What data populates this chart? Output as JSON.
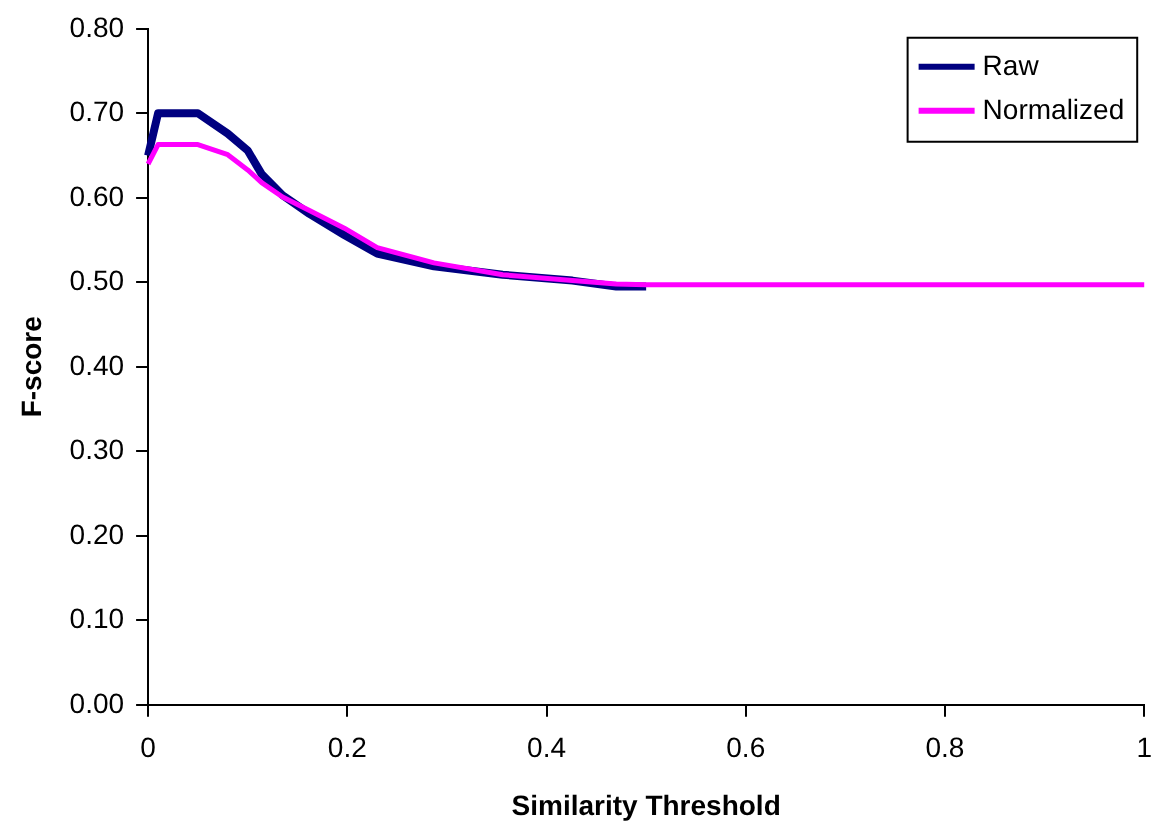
{
  "chart_data": {
    "type": "line",
    "xlabel": "Similarity Threshold",
    "ylabel": "F-score",
    "xlim": [
      0,
      1
    ],
    "xticks": [
      0,
      0.2,
      0.4,
      0.6,
      0.8,
      1
    ],
    "ylim": [
      0,
      0.8
    ],
    "yticks": [
      {
        "value": 0,
        "label": "0.00"
      },
      {
        "value": 0.1,
        "label": "0.10"
      },
      {
        "value": 0.2,
        "label": "0.20"
      },
      {
        "value": 0.3,
        "label": "0.30"
      },
      {
        "value": 0.4,
        "label": "0.40"
      },
      {
        "value": 0.5,
        "label": "0.50"
      },
      {
        "value": 0.6,
        "label": "0.60"
      },
      {
        "value": 0.7,
        "label": "0.70"
      },
      {
        "value": 0.8,
        "label": "0.80"
      }
    ],
    "grid": false,
    "legend": "top right",
    "marker": "none",
    "line_style": "solid",
    "series": [
      {
        "name": "Raw",
        "color": "#000080",
        "x": [
          0,
          0.01,
          0.05,
          0.08,
          0.1,
          0.114,
          0.135,
          0.162,
          0.197,
          0.23,
          0.287,
          0.356,
          0.426,
          0.47,
          0.5
        ],
        "values": [
          0.65,
          0.7,
          0.7,
          0.676,
          0.656,
          0.628,
          0.603,
          0.581,
          0.556,
          0.534,
          0.519,
          0.509,
          0.502,
          0.495,
          0.495
        ]
      },
      {
        "name": "Normalized",
        "color": "#ff00ff",
        "x": [
          0,
          0.01,
          0.05,
          0.08,
          0.1,
          0.114,
          0.135,
          0.162,
          0.197,
          0.23,
          0.287,
          0.356,
          0.426,
          0.47,
          0.5,
          0.6,
          0.8,
          1
        ],
        "values": [
          0.64,
          0.663,
          0.663,
          0.651,
          0.633,
          0.618,
          0.601,
          0.585,
          0.564,
          0.541,
          0.523,
          0.509,
          0.502,
          0.498,
          0.497,
          0.497,
          0.497,
          0.497
        ]
      }
    ]
  }
}
